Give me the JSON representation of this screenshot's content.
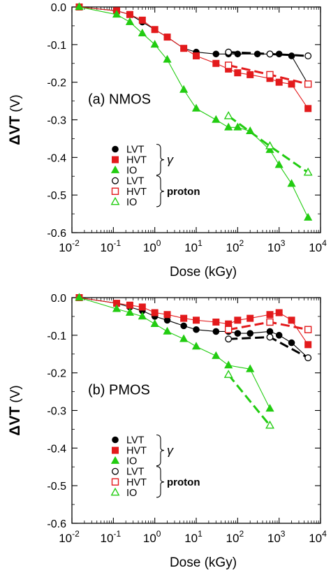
{
  "colors": {
    "black": "#000000",
    "red": "#e31a1c",
    "green": "#22cc11"
  },
  "chart_data": [
    {
      "type": "line",
      "panel_label": "(a) NMOS",
      "xlabel": "Dose  (kGy)",
      "ylabel": "ΔVT  (V)",
      "xscale": "log",
      "xlim": [
        0.01,
        10000
      ],
      "ylim": [
        -0.6,
        0.0
      ],
      "xtick_labels": [
        {
          "base": "10",
          "exp": "-2"
        },
        {
          "base": "10",
          "exp": "-1"
        },
        {
          "base": "10",
          "exp": "0"
        },
        {
          "base": "10",
          "exp": "1"
        },
        {
          "base": "10",
          "exp": "2"
        },
        {
          "base": "10",
          "exp": "3"
        },
        {
          "base": "10",
          "exp": "4"
        }
      ],
      "yticks": [
        "0.0",
        "-0.1",
        "-0.2",
        "-0.3",
        "-0.4",
        "-0.5",
        "-0.6"
      ],
      "grid": false,
      "legend_placement": "lower-left",
      "legend_groups": [
        {
          "label": "γ",
          "entries": [
            "LVT",
            "HVT",
            "IO"
          ]
        },
        {
          "label": "proton",
          "entries": [
            "LVT",
            "HVT",
            "IO"
          ]
        }
      ],
      "series": [
        {
          "name": "LVT",
          "group": "γ",
          "marker": "filled-circle",
          "color": "#000000",
          "line": "solid-thin",
          "x": [
            0.015,
            0.12,
            0.25,
            0.5,
            1,
            2,
            5,
            10,
            30,
            60,
            100,
            300,
            600,
            1000,
            2000,
            5000
          ],
          "y": [
            0.0,
            -0.01,
            -0.02,
            -0.04,
            -0.06,
            -0.08,
            -0.11,
            -0.12,
            -0.125,
            -0.125,
            -0.125,
            -0.125,
            -0.125,
            -0.125,
            -0.13,
            -0.205
          ]
        },
        {
          "name": "HVT",
          "group": "γ",
          "marker": "filled-square",
          "color": "#e31a1c",
          "line": "solid-thin",
          "x": [
            0.015,
            0.12,
            0.25,
            0.5,
            1,
            2,
            5,
            10,
            30,
            60,
            100,
            200,
            600,
            1000,
            2000,
            5000
          ],
          "y": [
            0.0,
            -0.01,
            -0.02,
            -0.035,
            -0.06,
            -0.08,
            -0.11,
            -0.13,
            -0.15,
            -0.165,
            -0.175,
            -0.18,
            -0.19,
            -0.2,
            -0.205,
            -0.27
          ]
        },
        {
          "name": "IO",
          "group": "γ",
          "marker": "filled-triangle",
          "color": "#22cc11",
          "line": "solid-thin",
          "x": [
            0.015,
            0.12,
            0.25,
            0.5,
            1,
            2,
            5,
            10,
            30,
            60,
            100,
            200,
            600,
            1000,
            2000,
            5000
          ],
          "y": [
            0.0,
            -0.02,
            -0.04,
            -0.07,
            -0.1,
            -0.14,
            -0.22,
            -0.27,
            -0.3,
            -0.32,
            -0.32,
            -0.33,
            -0.38,
            -0.42,
            -0.47,
            -0.56
          ]
        },
        {
          "name": "LVT",
          "group": "proton",
          "marker": "open-circle",
          "color": "#000000",
          "line": "dashed-thick",
          "x": [
            60,
            600,
            5000
          ],
          "y": [
            -0.12,
            -0.125,
            -0.13
          ]
        },
        {
          "name": "HVT",
          "group": "proton",
          "marker": "open-square",
          "color": "#e31a1c",
          "line": "dashed-thick",
          "x": [
            60,
            600,
            5000
          ],
          "y": [
            -0.155,
            -0.18,
            -0.205
          ]
        },
        {
          "name": "IO",
          "group": "proton",
          "marker": "open-triangle",
          "color": "#22cc11",
          "line": "dashed-thick",
          "x": [
            60,
            600,
            5000
          ],
          "y": [
            -0.29,
            -0.37,
            -0.44
          ]
        }
      ]
    },
    {
      "type": "line",
      "panel_label": "(b) PMOS",
      "xlabel": "Dose  (kGy)",
      "ylabel": "ΔVT  (V)",
      "xscale": "log",
      "xlim": [
        0.01,
        10000
      ],
      "ylim": [
        -0.6,
        0.0
      ],
      "xtick_labels": [
        {
          "base": "10",
          "exp": "-2"
        },
        {
          "base": "10",
          "exp": "-1"
        },
        {
          "base": "10",
          "exp": "0"
        },
        {
          "base": "10",
          "exp": "1"
        },
        {
          "base": "10",
          "exp": "2"
        },
        {
          "base": "10",
          "exp": "3"
        },
        {
          "base": "10",
          "exp": "4"
        }
      ],
      "yticks": [
        "0.0",
        "-0.1",
        "-0.2",
        "-0.3",
        "-0.4",
        "-0.5",
        "-0.6"
      ],
      "grid": false,
      "legend_placement": "lower-left",
      "legend_groups": [
        {
          "label": "γ",
          "entries": [
            "LVT",
            "HVT",
            "IO"
          ]
        },
        {
          "label": "proton",
          "entries": [
            "LVT",
            "HVT",
            "IO"
          ]
        }
      ],
      "series": [
        {
          "name": "LVT",
          "group": "γ",
          "marker": "filled-circle",
          "color": "#000000",
          "line": "solid-thin",
          "x": [
            0.015,
            0.12,
            0.25,
            0.5,
            1,
            2,
            5,
            10,
            30,
            60,
            100,
            200,
            600,
            1000,
            2000,
            5000
          ],
          "y": [
            0.0,
            -0.015,
            -0.025,
            -0.035,
            -0.05,
            -0.06,
            -0.075,
            -0.085,
            -0.09,
            -0.09,
            -0.095,
            -0.095,
            -0.09,
            -0.1,
            -0.12,
            -0.16
          ]
        },
        {
          "name": "HVT",
          "group": "γ",
          "marker": "filled-square",
          "color": "#e31a1c",
          "line": "solid-thin",
          "x": [
            0.015,
            0.12,
            0.25,
            0.5,
            1,
            2,
            5,
            10,
            30,
            60,
            100,
            200,
            600,
            1000,
            2000,
            5000
          ],
          "y": [
            0.0,
            -0.015,
            -0.02,
            -0.025,
            -0.04,
            -0.045,
            -0.055,
            -0.06,
            -0.065,
            -0.07,
            -0.06,
            -0.055,
            -0.045,
            -0.04,
            -0.06,
            -0.125
          ]
        },
        {
          "name": "IO",
          "group": "γ",
          "marker": "filled-triangle",
          "color": "#22cc11",
          "line": "solid-thin",
          "x": [
            0.015,
            0.12,
            0.25,
            0.5,
            1,
            2,
            5,
            10,
            30,
            60,
            200,
            600
          ],
          "y": [
            0.0,
            -0.03,
            -0.04,
            -0.05,
            -0.07,
            -0.09,
            -0.11,
            -0.13,
            -0.155,
            -0.18,
            -0.19,
            -0.295
          ]
        },
        {
          "name": "LVT",
          "group": "proton",
          "marker": "open-circle",
          "color": "#000000",
          "line": "dashed-thick",
          "x": [
            60,
            600,
            5000
          ],
          "y": [
            -0.11,
            -0.105,
            -0.16
          ]
        },
        {
          "name": "HVT",
          "group": "proton",
          "marker": "open-square",
          "color": "#e31a1c",
          "line": "dashed-thick",
          "x": [
            60,
            600,
            5000
          ],
          "y": [
            -0.085,
            -0.065,
            -0.085
          ]
        },
        {
          "name": "IO",
          "group": "proton",
          "marker": "open-triangle",
          "color": "#22cc11",
          "line": "dashed-thick",
          "x": [
            60,
            600
          ],
          "y": [
            -0.205,
            -0.34
          ]
        }
      ]
    }
  ]
}
